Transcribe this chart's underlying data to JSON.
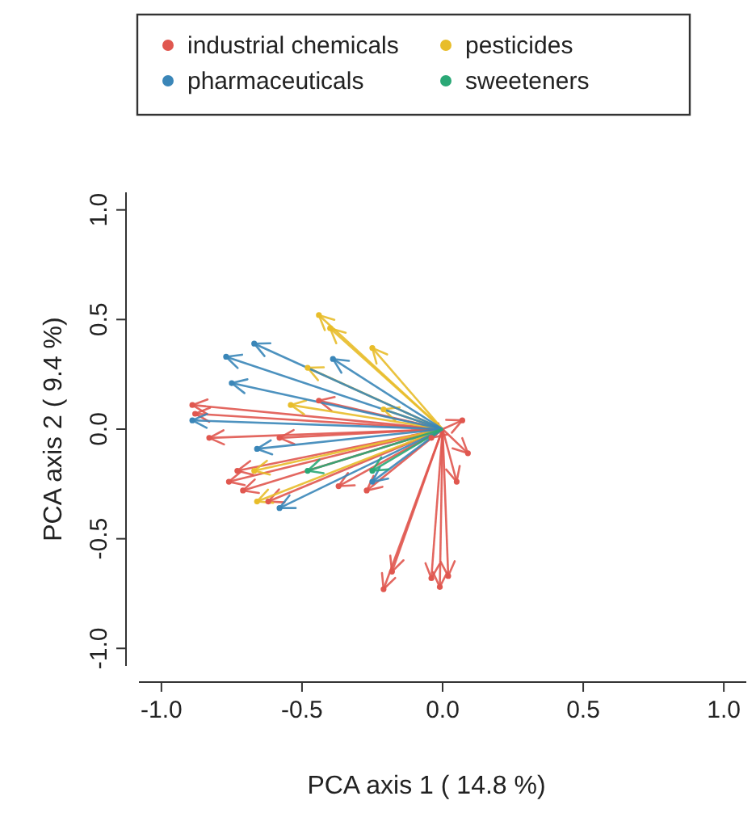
{
  "chart_data": {
    "type": "scatter",
    "xlabel": "PCA axis 1  ( 14.8 %)",
    "ylabel": "PCA axis 2  ( 9.4 %)",
    "xlim": [
      -1.08,
      1.08
    ],
    "ylim": [
      -1.08,
      1.08
    ],
    "xticks": [
      {
        "value": -1,
        "label": "-1.0"
      },
      {
        "value": -0.5,
        "label": "-0.5"
      },
      {
        "value": 0,
        "label": "0.0"
      },
      {
        "value": 0.5,
        "label": "0.5"
      },
      {
        "value": 1,
        "label": "1.0"
      }
    ],
    "yticks": [
      {
        "value": -1,
        "label": "-1.0"
      },
      {
        "value": -0.5,
        "label": "-0.5"
      },
      {
        "value": 0,
        "label": "0.0"
      },
      {
        "value": 0.5,
        "label": "0.5"
      },
      {
        "value": 1,
        "label": "1.0"
      }
    ],
    "legend": "top",
    "grid": false,
    "series": [
      {
        "name": "industrial chemicals",
        "color": "#e0574f",
        "x": [
          -0.89,
          -0.88,
          -0.83,
          -0.76,
          -0.73,
          -0.71,
          -0.62,
          -0.44,
          -0.37,
          -0.27,
          -0.18,
          -0.21,
          -0.04,
          0.02,
          -0.01,
          0.09,
          0.07,
          0.05,
          -0.04,
          -0.58
        ],
        "values": [
          0.11,
          0.07,
          -0.04,
          -0.24,
          -0.19,
          -0.28,
          -0.33,
          0.13,
          -0.26,
          -0.28,
          -0.65,
          -0.73,
          -0.68,
          -0.67,
          -0.72,
          -0.11,
          0.04,
          -0.24,
          -0.04,
          -0.04
        ]
      },
      {
        "name": "pesticides",
        "color": "#e8bd2a",
        "x": [
          -0.44,
          -0.4,
          -0.25,
          -0.67,
          -0.66,
          -0.54,
          -0.48,
          -0.21
        ],
        "values": [
          0.52,
          0.46,
          0.37,
          -0.19,
          -0.33,
          0.11,
          0.28,
          0.09
        ]
      },
      {
        "name": "pharmaceuticals",
        "color": "#3a86b8",
        "x": [
          -0.77,
          -0.67,
          -0.75,
          -0.89,
          -0.66,
          -0.58,
          -0.25,
          -0.39
        ],
        "values": [
          0.33,
          0.39,
          0.21,
          0.04,
          -0.09,
          -0.36,
          -0.24,
          0.32
        ]
      },
      {
        "name": "sweeteners",
        "color": "#2aa876",
        "x": [
          -0.48,
          -0.25
        ],
        "values": [
          -0.19,
          -0.19
        ]
      }
    ]
  }
}
